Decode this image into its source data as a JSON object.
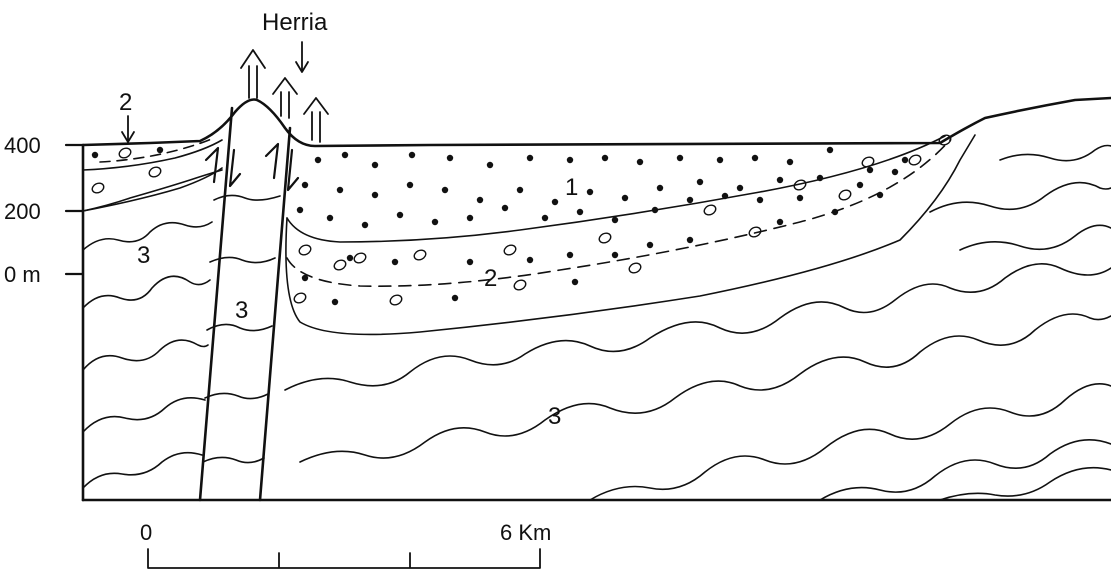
{
  "title_label": "Herria",
  "elevation_labels": [
    "400",
    "200",
    "0 m"
  ],
  "unit_labels": {
    "one": "1",
    "two_left": "2",
    "two_basin": "2",
    "three_left": "3",
    "three_block": "3",
    "three_bottom": "3"
  },
  "scale_bar": {
    "start_label": "0",
    "end_label": "6 Km"
  }
}
